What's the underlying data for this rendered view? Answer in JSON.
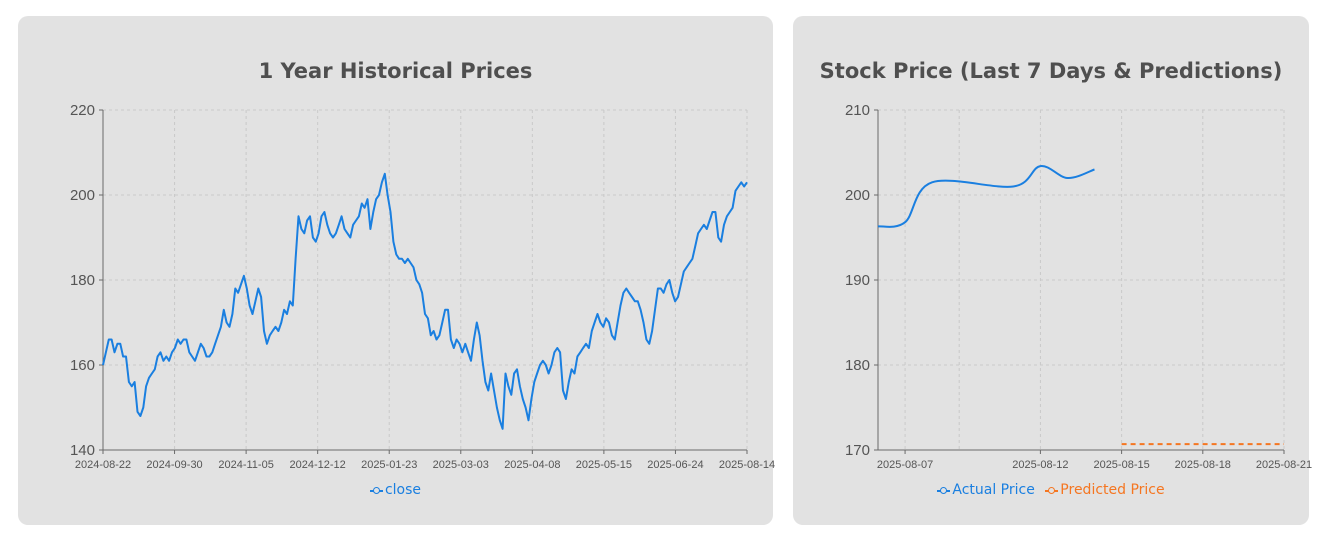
{
  "colors": {
    "actual": "#1a7fe0",
    "predicted": "#f57621",
    "grid": "#c9c9c9",
    "axis": "#6a6a6a"
  },
  "left_card": {
    "title": "1 Year Historical Prices",
    "legend": [
      "close"
    ]
  },
  "right_card": {
    "title": "Stock Price (Last 7 Days & Predictions)",
    "legend": [
      "Actual Price",
      "Predicted Price"
    ]
  },
  "chart_data": [
    {
      "type": "line",
      "title": "1 Year Historical Prices",
      "xlabel": "",
      "ylabel": "",
      "ylim": [
        140,
        220
      ],
      "yticks": [
        140,
        160,
        180,
        200,
        220
      ],
      "x_tick_labels": [
        "2024-08-22",
        "2024-09-30",
        "2024-11-05",
        "2024-12-12",
        "2025-01-23",
        "2025-03-03",
        "2025-04-08",
        "2025-05-15",
        "2025-06-24",
        "2025-08-14"
      ],
      "grid": true,
      "legend_position": "bottom",
      "series": [
        {
          "name": "close",
          "color": "#1a7fe0",
          "values": [
            160,
            163,
            166,
            166,
            163,
            165,
            165,
            162,
            162,
            156,
            155,
            156,
            149,
            148,
            150,
            155,
            157,
            158,
            159,
            162,
            163,
            161,
            162,
            161,
            163,
            164,
            166,
            165,
            166,
            166,
            163,
            162,
            161,
            163,
            165,
            164,
            162,
            162,
            163,
            165,
            167,
            169,
            173,
            170,
            169,
            172,
            178,
            177,
            179,
            181,
            178,
            174,
            172,
            175,
            178,
            176,
            168,
            165,
            167,
            168,
            169,
            168,
            170,
            173,
            172,
            175,
            174,
            185,
            195,
            192,
            191,
            194,
            195,
            190,
            189,
            191,
            195,
            196,
            193,
            191,
            190,
            191,
            193,
            195,
            192,
            191,
            190,
            193,
            194,
            195,
            198,
            197,
            199,
            192,
            196,
            199,
            200,
            203,
            205,
            200,
            196,
            189,
            186,
            185,
            185,
            184,
            185,
            184,
            183,
            180,
            179,
            177,
            172,
            171,
            167,
            168,
            166,
            167,
            170,
            173,
            173,
            166,
            164,
            166,
            165,
            163,
            165,
            163,
            161,
            166,
            170,
            167,
            161,
            156,
            154,
            158,
            154,
            150,
            147,
            145,
            158,
            155,
            153,
            158,
            159,
            155,
            152,
            150,
            147,
            152,
            156,
            158,
            160,
            161,
            160,
            158,
            160,
            163,
            164,
            163,
            154,
            152,
            156,
            159,
            158,
            162,
            163,
            164,
            165,
            164,
            168,
            170,
            172,
            170,
            169,
            171,
            170,
            167,
            166,
            170,
            174,
            177,
            178,
            177,
            176,
            175,
            175,
            173,
            170,
            166,
            165,
            168,
            173,
            178,
            178,
            177,
            179,
            180,
            177,
            175,
            176,
            179,
            182,
            183,
            184,
            185,
            188,
            191,
            192,
            193,
            192,
            194,
            196,
            196,
            190,
            189,
            193,
            195,
            196,
            197,
            201,
            202,
            203,
            202,
            203
          ]
        }
      ]
    },
    {
      "type": "line",
      "title": "Stock Price (Last 7 Days & Predictions)",
      "xlabel": "",
      "ylabel": "",
      "ylim": [
        170,
        210
      ],
      "yticks": [
        170,
        180,
        190,
        200,
        210
      ],
      "x": [
        "2025-08-06",
        "2025-08-07",
        "2025-08-08",
        "2025-08-11",
        "2025-08-12",
        "2025-08-13",
        "2025-08-14"
      ],
      "x_tick_labels": [
        "2025-08-07",
        "2025-08-12",
        "2025-08-15",
        "2025-08-18",
        "2025-08-21"
      ],
      "grid": true,
      "legend_position": "bottom",
      "series": [
        {
          "name": "Actual Price",
          "color": "#1a7fe0",
          "x": [
            "2025-08-06",
            "2025-08-07",
            "2025-08-08",
            "2025-08-11",
            "2025-08-12",
            "2025-08-13",
            "2025-08-14"
          ],
          "values": [
            196.3,
            196.8,
            201.5,
            201.0,
            203.4,
            202.0,
            203.0
          ]
        },
        {
          "name": "Predicted Price",
          "color": "#f57621",
          "x": [
            "2025-08-15",
            "2025-08-18",
            "2025-08-19",
            "2025-08-20",
            "2025-08-21"
          ],
          "values": [
            170.7,
            170.7,
            170.7,
            170.7,
            170.7
          ]
        }
      ]
    }
  ]
}
